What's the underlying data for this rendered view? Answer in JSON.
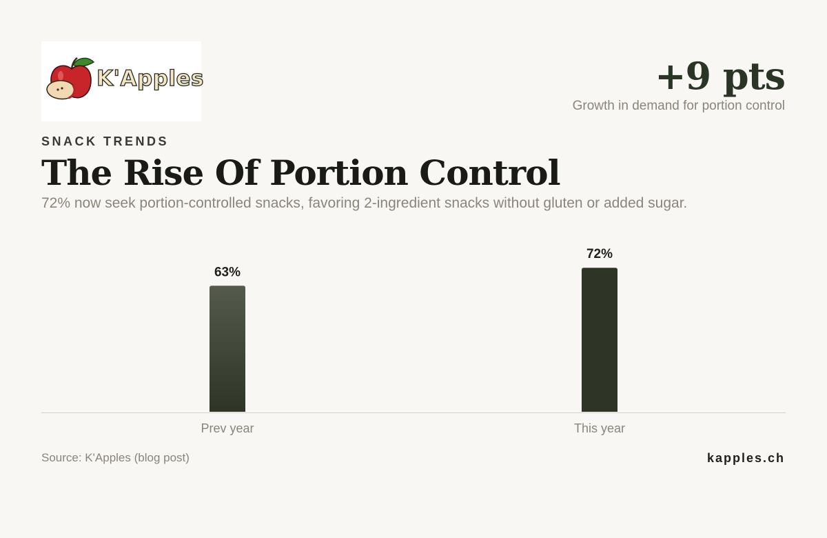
{
  "brand": {
    "logo_text": "K'Apples",
    "site": "kapples.ch"
  },
  "kpi": {
    "value": "+9 pts",
    "label": "Growth in demand for portion control"
  },
  "header": {
    "eyebrow": "SNACK TRENDS",
    "title": "The Rise Of Portion Control",
    "subtitle": "72% now seek portion-controlled snacks, favoring 2-ingredient snacks without gluten or added sugar."
  },
  "footer": {
    "source": "Source: K'Apples (blog post)"
  },
  "colors": {
    "background": "#f8f7f3",
    "bar_prev_top": "#545a4c",
    "bar_prev_bottom": "#2e3526",
    "bar_current": "#2e3526",
    "axis": "#d6d3cc"
  },
  "chart_data": {
    "type": "bar",
    "categories": [
      "Prev year",
      "This year"
    ],
    "values": [
      63,
      72
    ],
    "value_labels": [
      "63%",
      "72%"
    ],
    "title": "",
    "xlabel": "",
    "ylabel": "",
    "ylim": [
      0,
      100
    ],
    "grid": false,
    "legend": "none"
  }
}
